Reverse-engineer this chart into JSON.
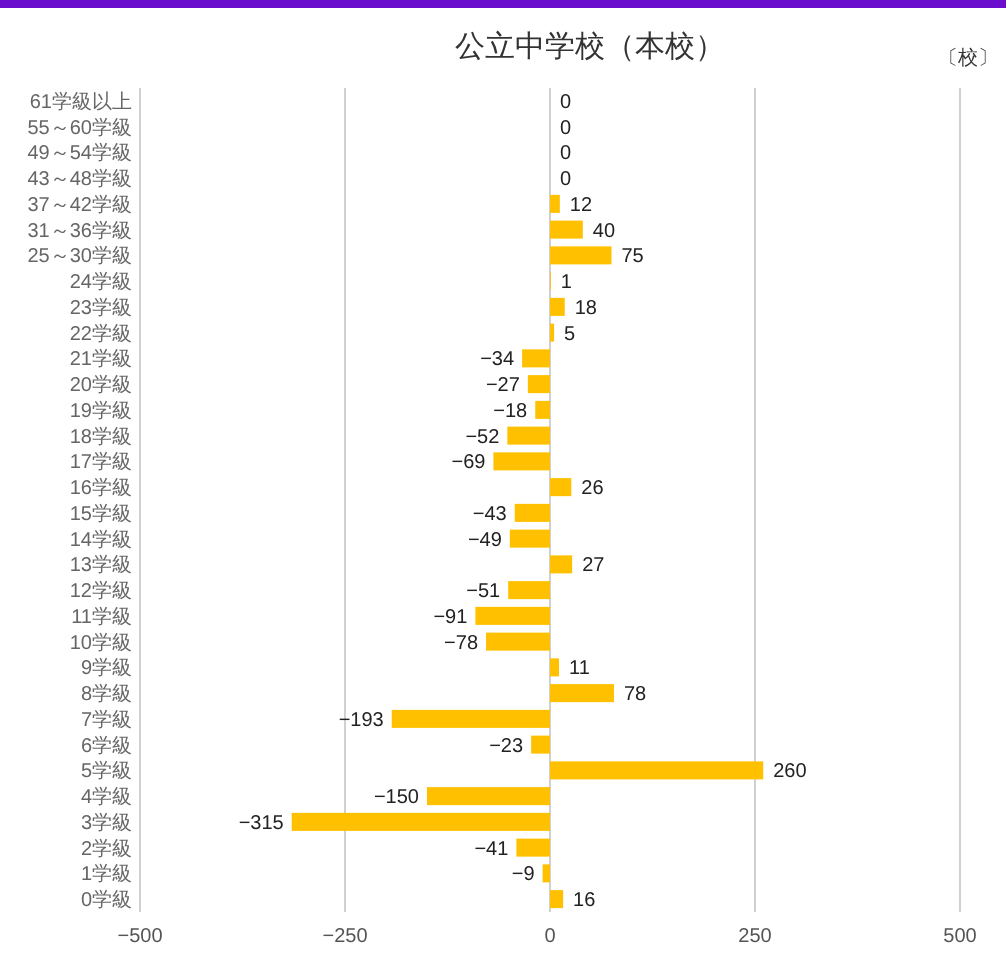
{
  "chart_data": {
    "type": "bar",
    "orientation": "horizontal",
    "title": "公立中学校（本校）",
    "annotations": [
      "〔校〕"
    ],
    "categories": [
      "61学級以上",
      "55～60学級",
      "49～54学級",
      "43～48学級",
      "37～42学級",
      "31～36学級",
      "25～30学級",
      "24学級",
      "23学級",
      "22学級",
      "21学級",
      "20学級",
      "19学級",
      "18学級",
      "17学級",
      "16学級",
      "15学級",
      "14学級",
      "13学級",
      "12学級",
      "11学級",
      "10学級",
      "9学級",
      "8学級",
      "7学級",
      "6学級",
      "5学級",
      "4学級",
      "3学級",
      "2学級",
      "1学級",
      "0学級"
    ],
    "values": [
      0,
      0,
      0,
      0,
      12,
      40,
      75,
      1,
      18,
      5,
      -34,
      -27,
      -18,
      -52,
      -69,
      26,
      -43,
      -49,
      27,
      -51,
      -91,
      -78,
      11,
      78,
      -193,
      -23,
      260,
      -150,
      -315,
      -41,
      -9,
      16
    ],
    "color": "#ffc000",
    "xlim": [
      -500,
      500
    ],
    "xticks": [
      -500,
      -250,
      0,
      250,
      500
    ],
    "grid": "x",
    "data_labels": true
  }
}
